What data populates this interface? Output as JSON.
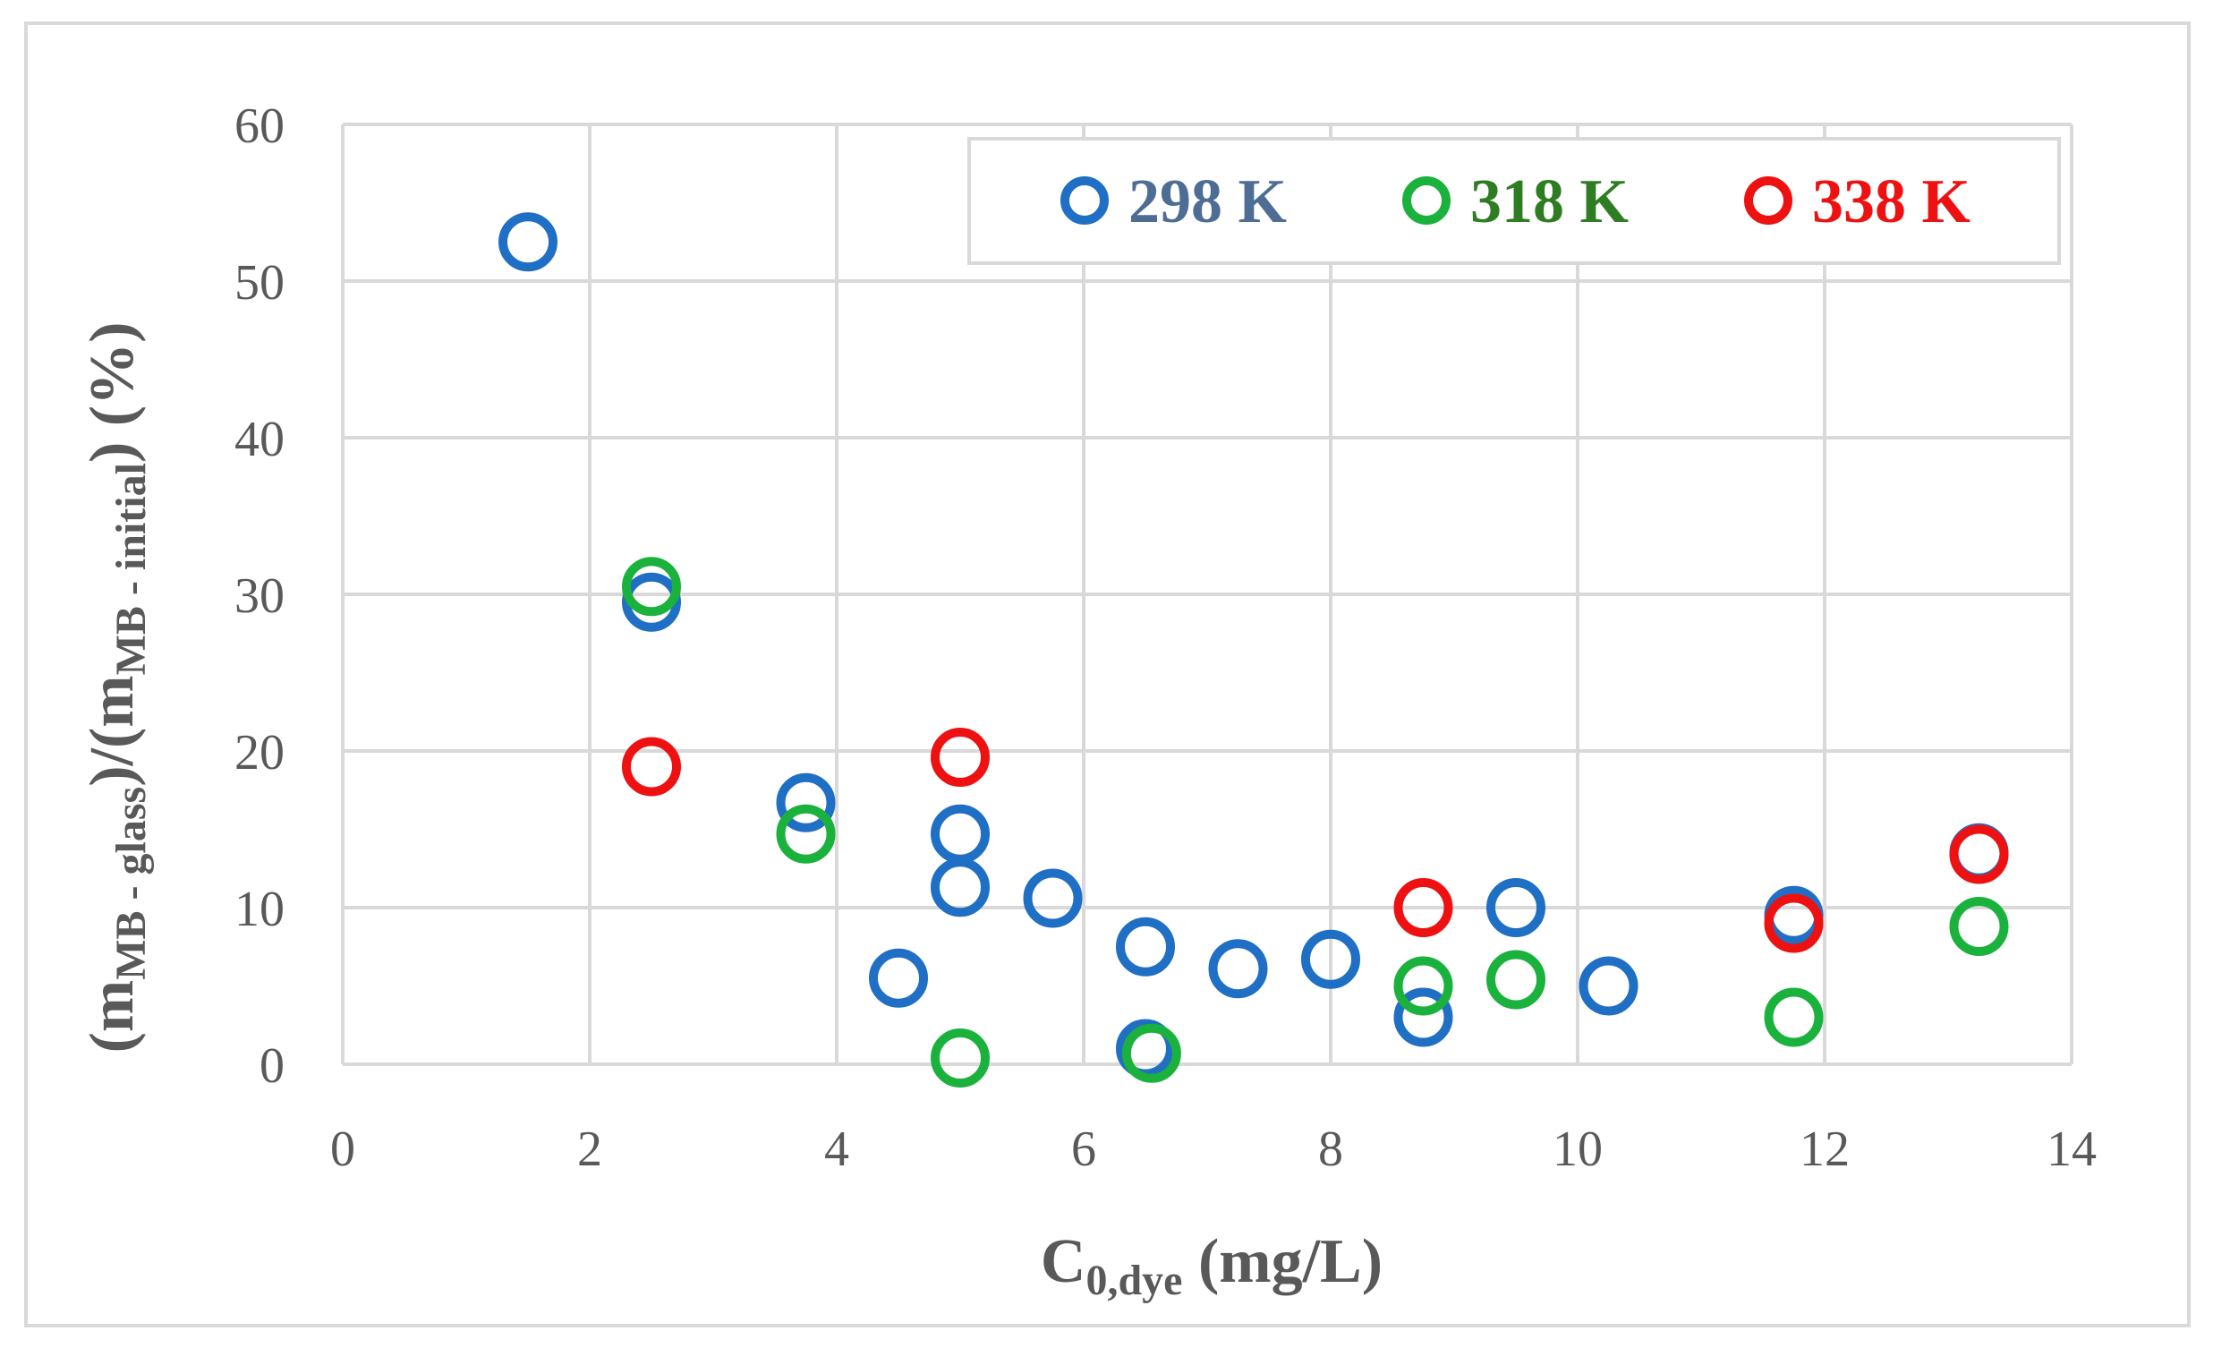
{
  "chart_data": {
    "type": "scatter",
    "title": "",
    "xlabel": {
      "main": "C",
      "sub": "0,dye",
      "rest": " (mg/L)"
    },
    "ylabel": {
      "p1": "(m",
      "s1": "MB - glass",
      "p2": ")/(m",
      "s2": "MB - initial",
      "p3": ") (%)"
    },
    "xlim": [
      0,
      14
    ],
    "ylim": [
      0,
      60
    ],
    "xticks": [
      0,
      2,
      4,
      6,
      8,
      10,
      12,
      14
    ],
    "yticks": [
      0,
      10,
      20,
      30,
      40,
      50,
      60
    ],
    "grid": true,
    "legend_position": "top-right",
    "series": [
      {
        "name": "298 K",
        "color": "#1f6fc5",
        "label_color": "#4e6d95",
        "points": [
          [
            1.5,
            52.5
          ],
          [
            2.5,
            29.5
          ],
          [
            3.75,
            16.7
          ],
          [
            4.5,
            5.5
          ],
          [
            5.0,
            14.7
          ],
          [
            5.0,
            11.3
          ],
          [
            5.75,
            10.6
          ],
          [
            6.5,
            7.5
          ],
          [
            6.5,
            1.0
          ],
          [
            7.25,
            6.1
          ],
          [
            8.0,
            6.7
          ],
          [
            8.75,
            3.0
          ],
          [
            9.5,
            10.0
          ],
          [
            10.25,
            5.0
          ],
          [
            11.75,
            9.5
          ],
          [
            13.25,
            13.5
          ]
        ]
      },
      {
        "name": "318 K",
        "color": "#1ab23c",
        "label_color": "#2e7d22",
        "points": [
          [
            2.5,
            30.5
          ],
          [
            3.75,
            14.7
          ],
          [
            5.0,
            0.4
          ],
          [
            6.55,
            0.7
          ],
          [
            8.75,
            5.0
          ],
          [
            9.5,
            5.4
          ],
          [
            11.75,
            3.0
          ],
          [
            13.25,
            8.8
          ]
        ]
      },
      {
        "name": "338 K",
        "color": "#ee1111",
        "label_color": "#ee1111",
        "points": [
          [
            2.5,
            19.0
          ],
          [
            5.0,
            19.6
          ],
          [
            8.75,
            10.0
          ],
          [
            11.75,
            9.0
          ],
          [
            13.25,
            13.4
          ]
        ]
      }
    ]
  }
}
